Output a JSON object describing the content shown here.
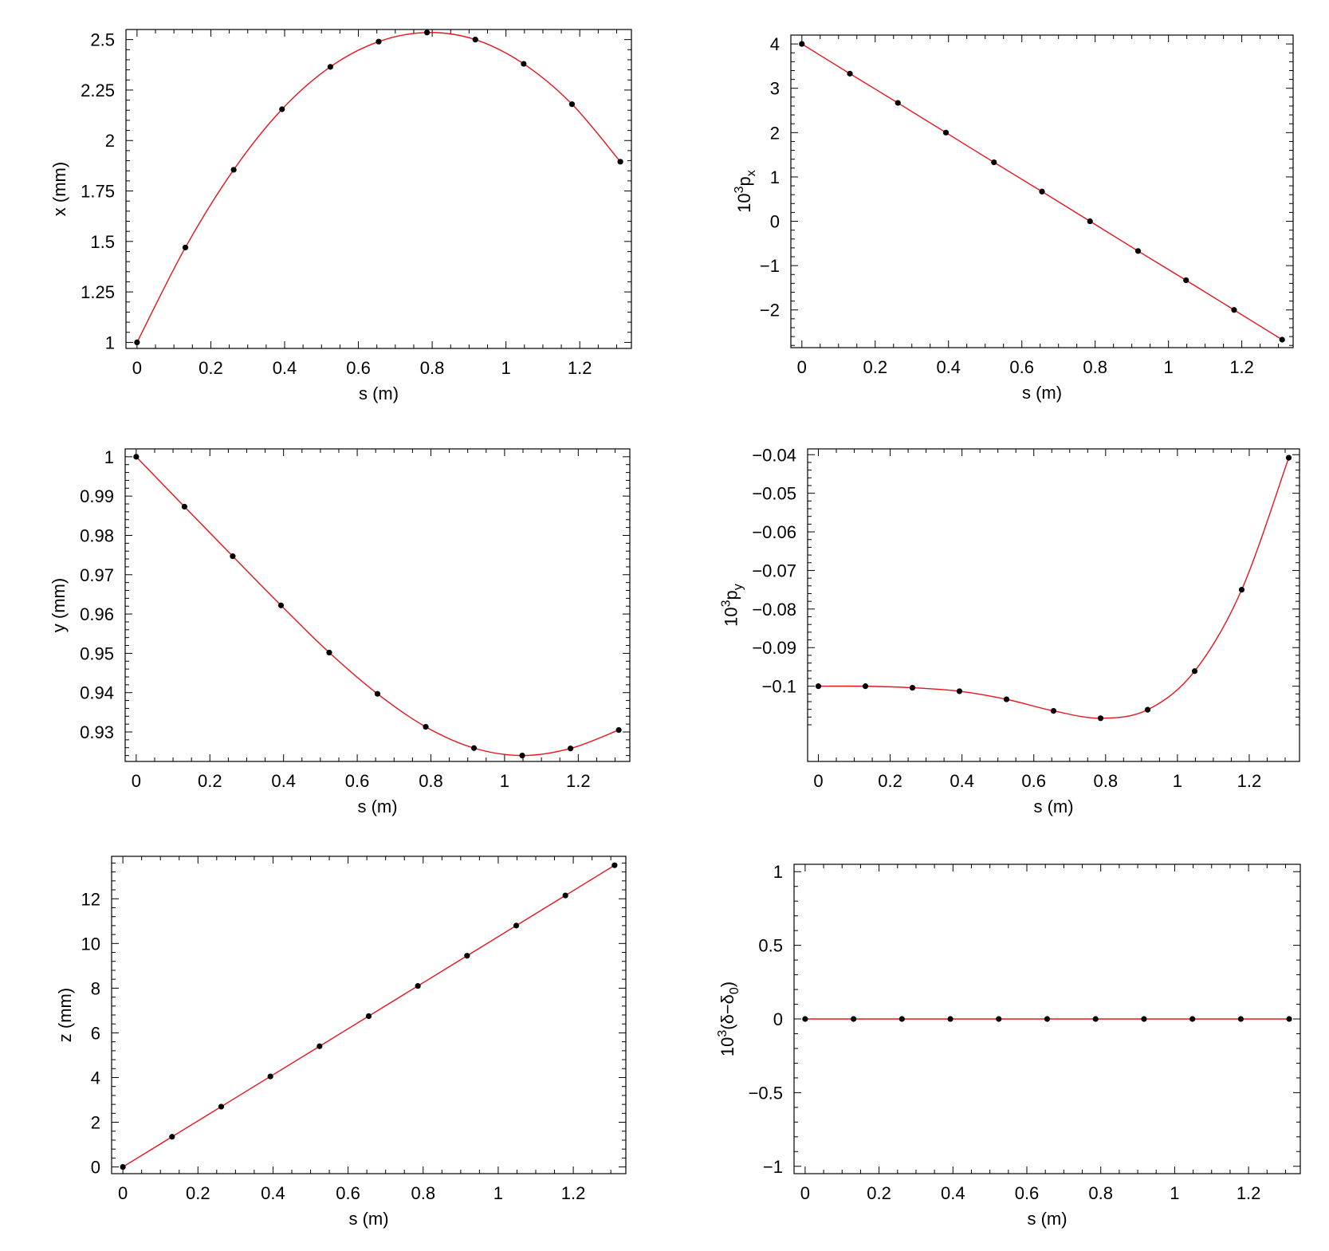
{
  "chart_data": [
    {
      "type": "line",
      "xlabel": "s (m)",
      "ylabel_parts": [
        {
          "t": "x (mm)"
        }
      ],
      "xlim": [
        -0.03,
        1.34
      ],
      "ylim": [
        0.97,
        2.55
      ],
      "xticks": [
        0,
        0.2,
        0.4,
        0.6,
        0.8,
        1,
        1.2
      ],
      "xtick_labels": [
        "0",
        "0.2",
        "0.4",
        "0.6",
        "0.8",
        "1",
        "1.2"
      ],
      "yticks": [
        1,
        1.25,
        1.5,
        1.75,
        2,
        2.25,
        2.5
      ],
      "ytick_labels": [
        "1",
        "1.25",
        "1.5",
        "1.75",
        "2",
        "2.25",
        "2.5"
      ],
      "series": [
        {
          "x": [
            0,
            0.131,
            0.262,
            0.393,
            0.524,
            0.655,
            0.786,
            0.917,
            1.048,
            1.179,
            1.31
          ],
          "y": [
            1.0,
            1.47,
            1.855,
            2.155,
            2.365,
            2.49,
            2.535,
            2.5,
            2.38,
            2.18,
            1.895
          ]
        }
      ]
    },
    {
      "type": "line",
      "xlabel": "s (m)",
      "ylabel_parts": [
        {
          "t": "10"
        },
        {
          "t": "3",
          "sup": true
        },
        {
          "t": "p"
        },
        {
          "t": "x",
          "sub": true
        }
      ],
      "xlim": [
        -0.03,
        1.34
      ],
      "ylim": [
        -2.85,
        4.2
      ],
      "xticks": [
        0,
        0.2,
        0.4,
        0.6,
        0.8,
        1,
        1.2
      ],
      "xtick_labels": [
        "0",
        "0.2",
        "0.4",
        "0.6",
        "0.8",
        "1",
        "1.2"
      ],
      "yticks": [
        -2,
        -1,
        0,
        1,
        2,
        3,
        4
      ],
      "ytick_labels": [
        "−2",
        "−1",
        "0",
        "1",
        "2",
        "3",
        "4"
      ],
      "series": [
        {
          "x": [
            0,
            0.131,
            0.262,
            0.393,
            0.524,
            0.655,
            0.786,
            0.917,
            1.048,
            1.179,
            1.31
          ],
          "y": [
            4.0,
            3.33,
            2.67,
            2.0,
            1.33,
            0.67,
            0.0,
            -0.67,
            -1.33,
            -2.0,
            -2.67
          ]
        }
      ]
    },
    {
      "type": "line",
      "xlabel": "s (m)",
      "ylabel_parts": [
        {
          "t": "y (mm)"
        }
      ],
      "xlim": [
        -0.03,
        1.34
      ],
      "ylim": [
        0.9225,
        1.002
      ],
      "xticks": [
        0,
        0.2,
        0.4,
        0.6,
        0.8,
        1,
        1.2
      ],
      "xtick_labels": [
        "0",
        "0.2",
        "0.4",
        "0.6",
        "0.8",
        "1",
        "1.2"
      ],
      "yticks": [
        0.93,
        0.94,
        0.95,
        0.96,
        0.97,
        0.98,
        0.99,
        1
      ],
      "ytick_labels": [
        "0.93",
        "0.94",
        "0.95",
        "0.96",
        "0.97",
        "0.98",
        "0.99",
        "1"
      ],
      "series": [
        {
          "x": [
            0,
            0.131,
            0.262,
            0.393,
            0.524,
            0.655,
            0.786,
            0.917,
            1.048,
            1.179,
            1.31
          ],
          "y": [
            1.0,
            0.9873,
            0.9747,
            0.9622,
            0.9502,
            0.9397,
            0.9313,
            0.9259,
            0.924,
            0.9258,
            0.9305
          ]
        }
      ]
    },
    {
      "type": "line",
      "xlabel": "s (m)",
      "ylabel_parts": [
        {
          "t": "10"
        },
        {
          "t": "3",
          "sup": true
        },
        {
          "t": "p"
        },
        {
          "t": "y",
          "sub": true
        }
      ],
      "xlim": [
        -0.03,
        1.34
      ],
      "ylim": [
        -0.1195,
        -0.0385
      ],
      "xticks": [
        0,
        0.2,
        0.4,
        0.6,
        0.8,
        1,
        1.2
      ],
      "xtick_labels": [
        "0",
        "0.2",
        "0.4",
        "0.6",
        "0.8",
        "1",
        "1.2"
      ],
      "yticks": [
        -0.1,
        -0.09,
        -0.08,
        -0.07,
        -0.06,
        -0.05,
        -0.04
      ],
      "ytick_labels": [
        "−0.1",
        "−0.09",
        "−0.08",
        "−0.07",
        "−0.06",
        "−0.05",
        "−0.04"
      ],
      "series": [
        {
          "x": [
            0,
            0.131,
            0.262,
            0.393,
            0.524,
            0.655,
            0.786,
            0.917,
            1.048,
            1.179,
            1.31
          ],
          "y": [
            -0.1,
            -0.1,
            -0.1004,
            -0.1013,
            -0.1034,
            -0.1064,
            -0.1083,
            -0.1061,
            -0.0961,
            -0.075,
            -0.0408
          ]
        }
      ]
    },
    {
      "type": "line",
      "xlabel": "s (m)",
      "ylabel_parts": [
        {
          "t": "z (mm)"
        }
      ],
      "xlim": [
        -0.03,
        1.34
      ],
      "ylim": [
        -0.3,
        13.9
      ],
      "xticks": [
        0,
        0.2,
        0.4,
        0.6,
        0.8,
        1,
        1.2
      ],
      "xtick_labels": [
        "0",
        "0.2",
        "0.4",
        "0.6",
        "0.8",
        "1",
        "1.2"
      ],
      "yticks": [
        0,
        2,
        4,
        6,
        8,
        10,
        12
      ],
      "ytick_labels": [
        "0",
        "2",
        "4",
        "6",
        "8",
        "10",
        "12"
      ],
      "series": [
        {
          "x": [
            0,
            0.131,
            0.262,
            0.393,
            0.524,
            0.655,
            0.786,
            0.917,
            1.048,
            1.179,
            1.31
          ],
          "y": [
            0,
            1.35,
            2.7,
            4.05,
            5.4,
            6.75,
            8.1,
            9.45,
            10.8,
            12.15,
            13.5
          ]
        }
      ]
    },
    {
      "type": "line",
      "xlabel": "s (m)",
      "ylabel_parts": [
        {
          "t": "10"
        },
        {
          "t": "3",
          "sup": true
        },
        {
          "t": "(δ−δ"
        },
        {
          "t": "0",
          "sub": true
        },
        {
          "t": ")"
        }
      ],
      "xlim": [
        -0.03,
        1.34
      ],
      "ylim": [
        -1.05,
        1.05
      ],
      "xticks": [
        0,
        0.2,
        0.4,
        0.6,
        0.8,
        1,
        1.2
      ],
      "xtick_labels": [
        "0",
        "0.2",
        "0.4",
        "0.6",
        "0.8",
        "1",
        "1.2"
      ],
      "yticks": [
        -1,
        -0.5,
        0,
        0.5,
        1
      ],
      "ytick_labels": [
        "−1",
        "−0.5",
        "0",
        "0.5",
        "1"
      ],
      "series": [
        {
          "x": [
            0,
            0.131,
            0.262,
            0.393,
            0.524,
            0.655,
            0.786,
            0.917,
            1.048,
            1.179,
            1.31
          ],
          "y": [
            0,
            0,
            0,
            0,
            0,
            0,
            0,
            0,
            0,
            0,
            0
          ]
        }
      ]
    }
  ],
  "colors": {
    "curve": "#e8131c",
    "points": "#000000"
  }
}
